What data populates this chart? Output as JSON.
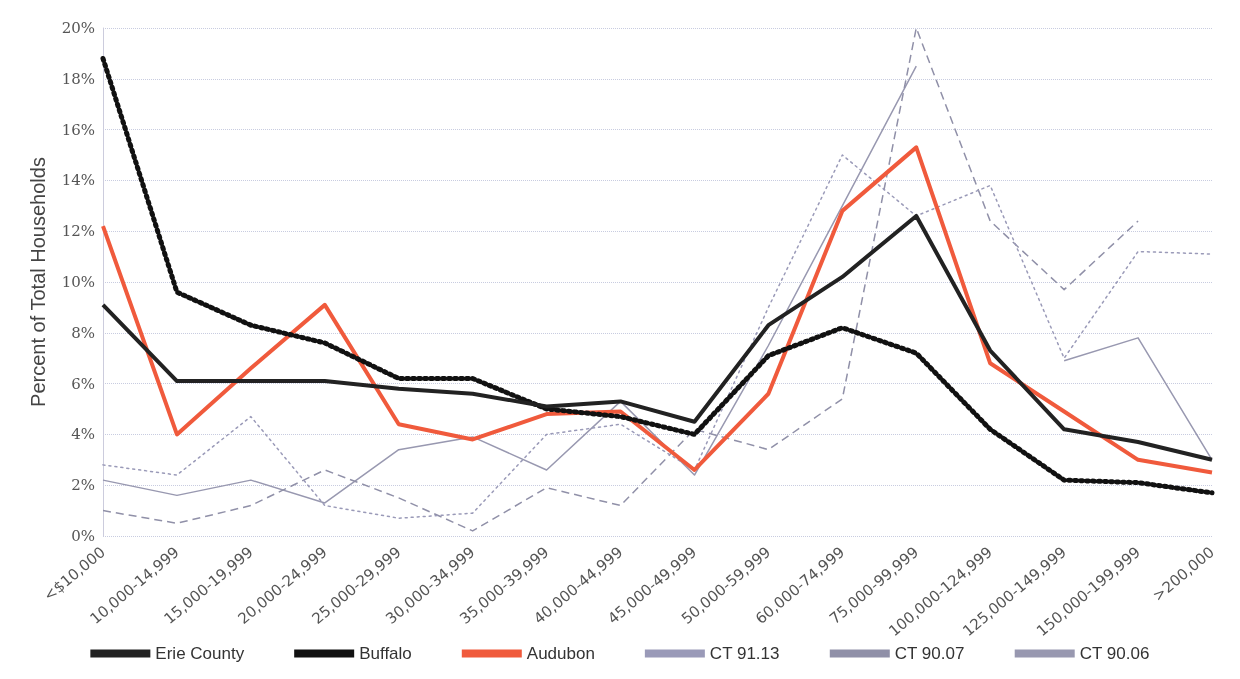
{
  "chart_data": {
    "type": "line",
    "ylabel": "Percent of Total Households",
    "categories": [
      "<$10,000",
      "10,000-14,999",
      "15,000-19,999",
      "20,000-24,999",
      "25,000-29,999",
      "30,000-34,999",
      "35,000-39,999",
      "40,000-44,999",
      "45,000-49,999",
      "50,000-59,999",
      "60,000-74,999",
      "75,000-99,999",
      "100,000-124,999",
      "125,000-149,999",
      "150,000-199,999",
      ">200,000"
    ],
    "series": [
      {
        "name": "Erie County",
        "color": "#222222",
        "line_style": "solid",
        "values": [
          9.1,
          6.1,
          6.1,
          6.1,
          5.8,
          5.6,
          5.1,
          5.3,
          4.5,
          8.3,
          10.2,
          12.6,
          7.3,
          4.2,
          3.7,
          3.0
        ]
      },
      {
        "name": "Buffalo",
        "color": "#111111",
        "line_style": "dotted",
        "values": [
          18.8,
          9.6,
          8.3,
          7.6,
          6.2,
          6.2,
          5.0,
          4.7,
          4.0,
          7.1,
          8.2,
          7.2,
          4.2,
          2.2,
          2.1,
          1.7
        ]
      },
      {
        "name": "Audubon",
        "color": "#f05a3c",
        "line_style": "solid",
        "values": [
          12.2,
          4.0,
          6.6,
          9.1,
          4.4,
          3.8,
          4.8,
          4.9,
          2.6,
          5.6,
          12.8,
          15.3,
          6.8,
          4.9,
          3.0,
          2.5
        ]
      },
      {
        "name": "CT 91.13",
        "color": "#9a9ab8",
        "line_style": "dotted",
        "values": [
          2.8,
          2.4,
          4.7,
          1.2,
          0.7,
          0.9,
          4.0,
          4.4,
          2.6,
          9.0,
          15.0,
          12.6,
          13.8,
          7.0,
          11.2,
          11.1
        ]
      },
      {
        "name": "CT 90.07",
        "color": "#9090a8",
        "line_style": "dashed",
        "values": [
          1.0,
          0.5,
          1.2,
          2.6,
          1.5,
          0.2,
          1.9,
          1.2,
          4.2,
          3.4,
          5.4,
          20.0,
          12.4,
          9.7,
          12.4,
          null
        ]
      },
      {
        "name": "CT 90.06",
        "color": "#9898b0",
        "line_style": "solid",
        "values": [
          2.2,
          1.6,
          2.2,
          1.3,
          3.4,
          3.9,
          2.6,
          5.3,
          2.4,
          7.5,
          13.0,
          18.5,
          null,
          6.9,
          7.8,
          3.0
        ]
      }
    ],
    "ylim": [
      0,
      20
    ],
    "yticks": [
      {
        "value": 0,
        "label": "0%"
      },
      {
        "value": 2,
        "label": "2%"
      },
      {
        "value": 4,
        "label": "4%"
      },
      {
        "value": 6,
        "label": "6%"
      },
      {
        "value": 8,
        "label": "8%"
      },
      {
        "value": 10,
        "label": "10%"
      },
      {
        "value": 12,
        "label": "12%"
      },
      {
        "value": 14,
        "label": "14%"
      },
      {
        "value": 16,
        "label": "16%"
      },
      {
        "value": 18,
        "label": "18%"
      },
      {
        "value": 20,
        "label": "20%"
      }
    ],
    "grid": "y",
    "legend": "bottom",
    "marker": "none"
  }
}
